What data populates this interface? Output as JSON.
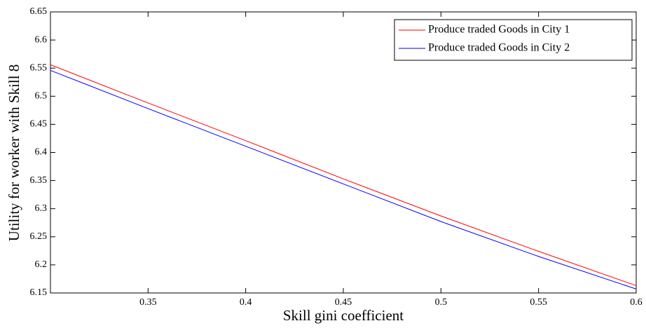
{
  "chart_data": {
    "type": "line",
    "x_label": "Skill gini coefficient",
    "y_label": "Utility for worker with Skill 8",
    "x": [
      0.3,
      0.35,
      0.4,
      0.45,
      0.5,
      0.55,
      0.6
    ],
    "series": [
      {
        "name": "Produce traded Goods in City 1",
        "color": "#ff0000",
        "values": [
          6.556,
          6.488,
          6.421,
          6.353,
          6.287,
          6.224,
          6.163
        ]
      },
      {
        "name": "Produce traded Goods in City 2",
        "color": "#0000ff",
        "values": [
          6.546,
          6.478,
          6.411,
          6.344,
          6.277,
          6.215,
          6.157
        ]
      }
    ],
    "xlim": [
      0.3,
      0.6
    ],
    "xticks": [
      0.35,
      0.4,
      0.45,
      0.5,
      0.55,
      0.6
    ],
    "ylim": [
      6.15,
      6.65
    ],
    "yticks": [
      6.15,
      6.2,
      6.25,
      6.3,
      6.35,
      6.4,
      6.45,
      6.5,
      6.55,
      6.6,
      6.65
    ],
    "grid": false,
    "legend": "upper-right"
  }
}
